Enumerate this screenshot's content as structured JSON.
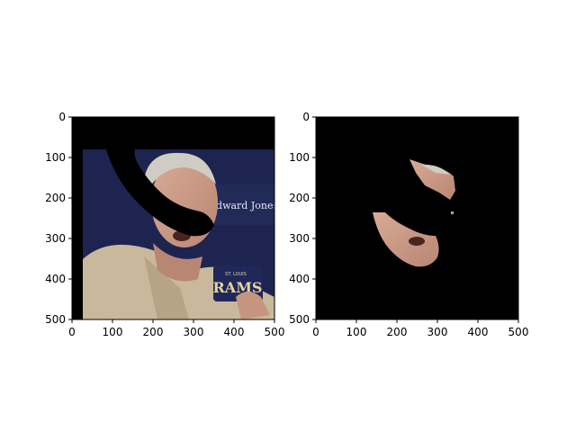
{
  "chart_data": [
    {
      "type": "image",
      "title": "",
      "xlabel": "",
      "ylabel": "",
      "xlim": [
        0,
        500
      ],
      "ylim": [
        500,
        0
      ],
      "xticks": [
        0,
        100,
        200,
        300,
        400,
        500
      ],
      "yticks": [
        0,
        100,
        200,
        300,
        400,
        500
      ],
      "content": "photo of a man, partially masked in black",
      "visible_text": [
        "Edward Jones",
        "ST. LOUIS",
        "RAMS"
      ]
    },
    {
      "type": "image",
      "title": "",
      "xlabel": "",
      "ylabel": "",
      "xlim": [
        0,
        500
      ],
      "ylim": [
        500,
        0
      ],
      "xticks": [
        0,
        100,
        200,
        300,
        400,
        500
      ],
      "yticks": [
        0,
        100,
        200,
        300,
        400,
        500
      ],
      "content": "segmented face region on black background"
    }
  ],
  "colors": {
    "mask": "#000000",
    "backdrop": "#1d2450",
    "skin": "#c99b86",
    "hair": "#c8c5be",
    "shirt": "#c9b89c",
    "axis": "#000000"
  }
}
